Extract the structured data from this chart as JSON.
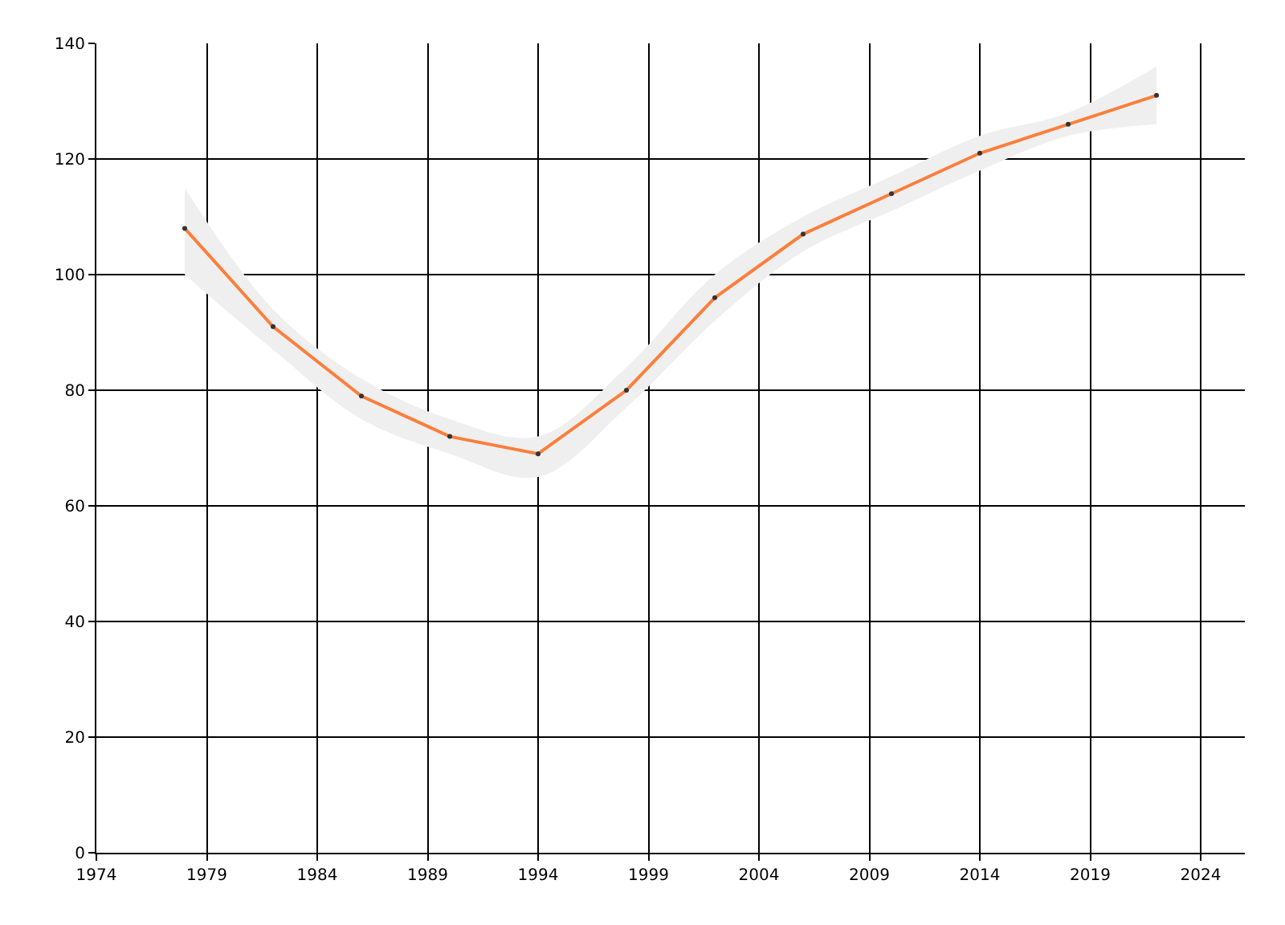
{
  "chart_data": {
    "type": "line",
    "x": [
      1978,
      1982,
      1986,
      1990,
      1994,
      1998,
      2002,
      2006,
      2010,
      2014,
      2018,
      2022
    ],
    "series": [
      {
        "color": "#fb7f3c",
        "values": [
          108,
          91,
          79,
          72,
          69,
          80,
          96,
          107,
          114,
          121,
          126,
          131
        ],
        "lower": [
          100,
          87,
          75,
          69,
          65,
          77,
          92,
          104,
          111,
          118,
          124,
          126
        ],
        "upper": [
          115,
          94,
          82,
          75,
          72,
          84,
          100,
          110,
          117,
          124,
          128,
          136
        ]
      }
    ],
    "xlim": [
      1974,
      2026
    ],
    "xticks": [
      1974,
      1979,
      1984,
      1989,
      1994,
      1999,
      2004,
      2009,
      2014,
      2019,
      2024
    ],
    "ylim": [
      0,
      140
    ],
    "yticks": [
      0,
      20,
      40,
      60,
      80,
      100,
      120,
      140
    ],
    "grid": true,
    "marker": "circle",
    "line_style": "solid"
  }
}
